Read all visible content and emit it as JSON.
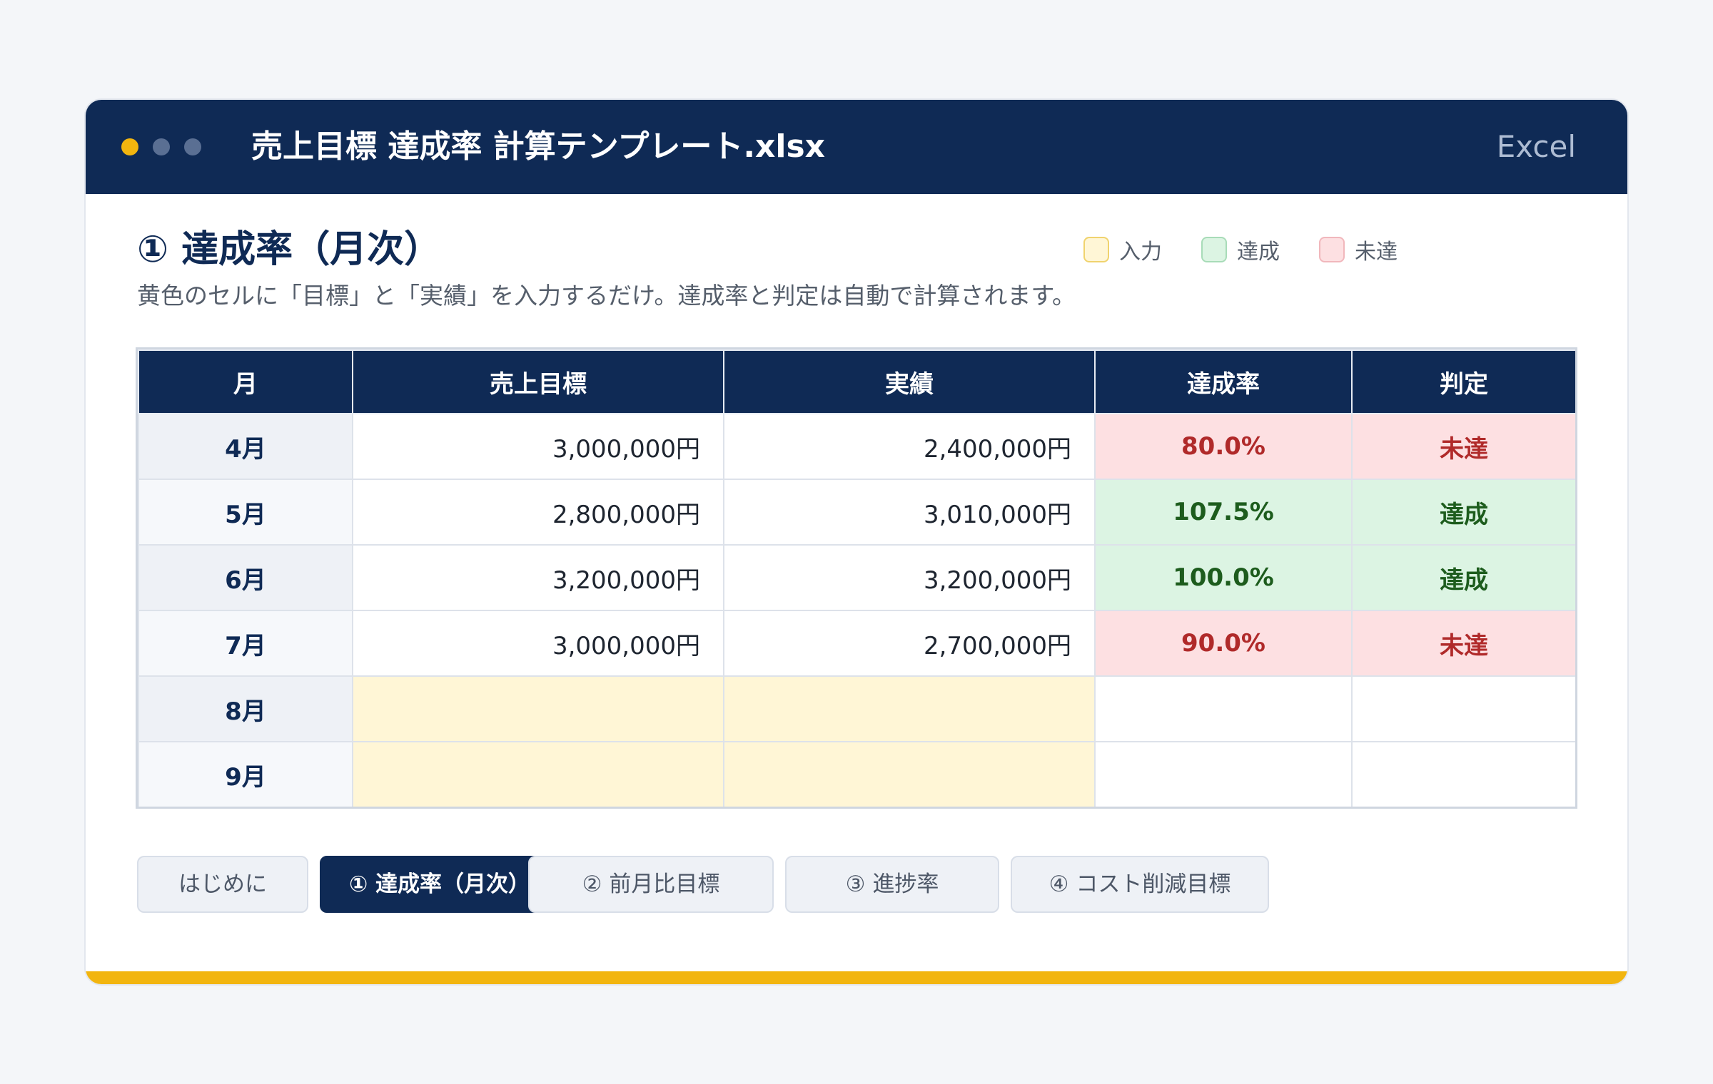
{
  "window": {
    "title": "売上目標 達成率 計算テンプレート.xlsx",
    "app_label": "Excel"
  },
  "colors": {
    "navy": "#0f2a55",
    "accent": "#f2b50f",
    "dot_inactive": "#5a6f93",
    "input_bg": "#fff6d6",
    "input_border": "#f0d36e",
    "achieved_bg": "#dcf4e3",
    "achieved_text": "#1d5c1d",
    "achieved_border": "#a8dcb8",
    "missed_bg": "#fde0e2",
    "missed_text": "#b02a2a",
    "missed_border": "#f1b7bc",
    "month_bg_odd": "#eef1f6",
    "month_bg_even": "#f6f8fb"
  },
  "section": {
    "title": "① 達成率（月次）",
    "description": "黄色のセルに「目標」と「実績」を入力するだけ。達成率と判定は自動で計算されます。"
  },
  "legend": [
    {
      "label": "入力",
      "type": "input"
    },
    {
      "label": "達成",
      "type": "achieved"
    },
    {
      "label": "未達",
      "type": "missed"
    }
  ],
  "table": {
    "headers": [
      "月",
      "売上目標",
      "実績",
      "達成率",
      "判定"
    ],
    "rows": [
      {
        "month": "4月",
        "target": "3,000,000円",
        "actual": "2,400,000円",
        "rate": "80.0%",
        "judgement": "未達",
        "status": "missed"
      },
      {
        "month": "5月",
        "target": "2,800,000円",
        "actual": "3,010,000円",
        "rate": "107.5%",
        "judgement": "達成",
        "status": "achieved"
      },
      {
        "month": "6月",
        "target": "3,200,000円",
        "actual": "3,200,000円",
        "rate": "100.0%",
        "judgement": "達成",
        "status": "achieved"
      },
      {
        "month": "7月",
        "target": "3,000,000円",
        "actual": "2,700,000円",
        "rate": "90.0%",
        "judgement": "未達",
        "status": "missed"
      },
      {
        "month": "8月",
        "target": "",
        "actual": "",
        "rate": "",
        "judgement": "",
        "status": "input"
      },
      {
        "month": "9月",
        "target": "",
        "actual": "",
        "rate": "",
        "judgement": "",
        "status": "input"
      }
    ]
  },
  "tabs": [
    {
      "label": "はじめに",
      "active": false
    },
    {
      "label": "① 達成率（月次）",
      "active": true
    },
    {
      "label": "② 前月比目標",
      "active": false
    },
    {
      "label": "③ 進捗率",
      "active": false
    },
    {
      "label": "④ コスト削減目標",
      "active": false
    }
  ]
}
